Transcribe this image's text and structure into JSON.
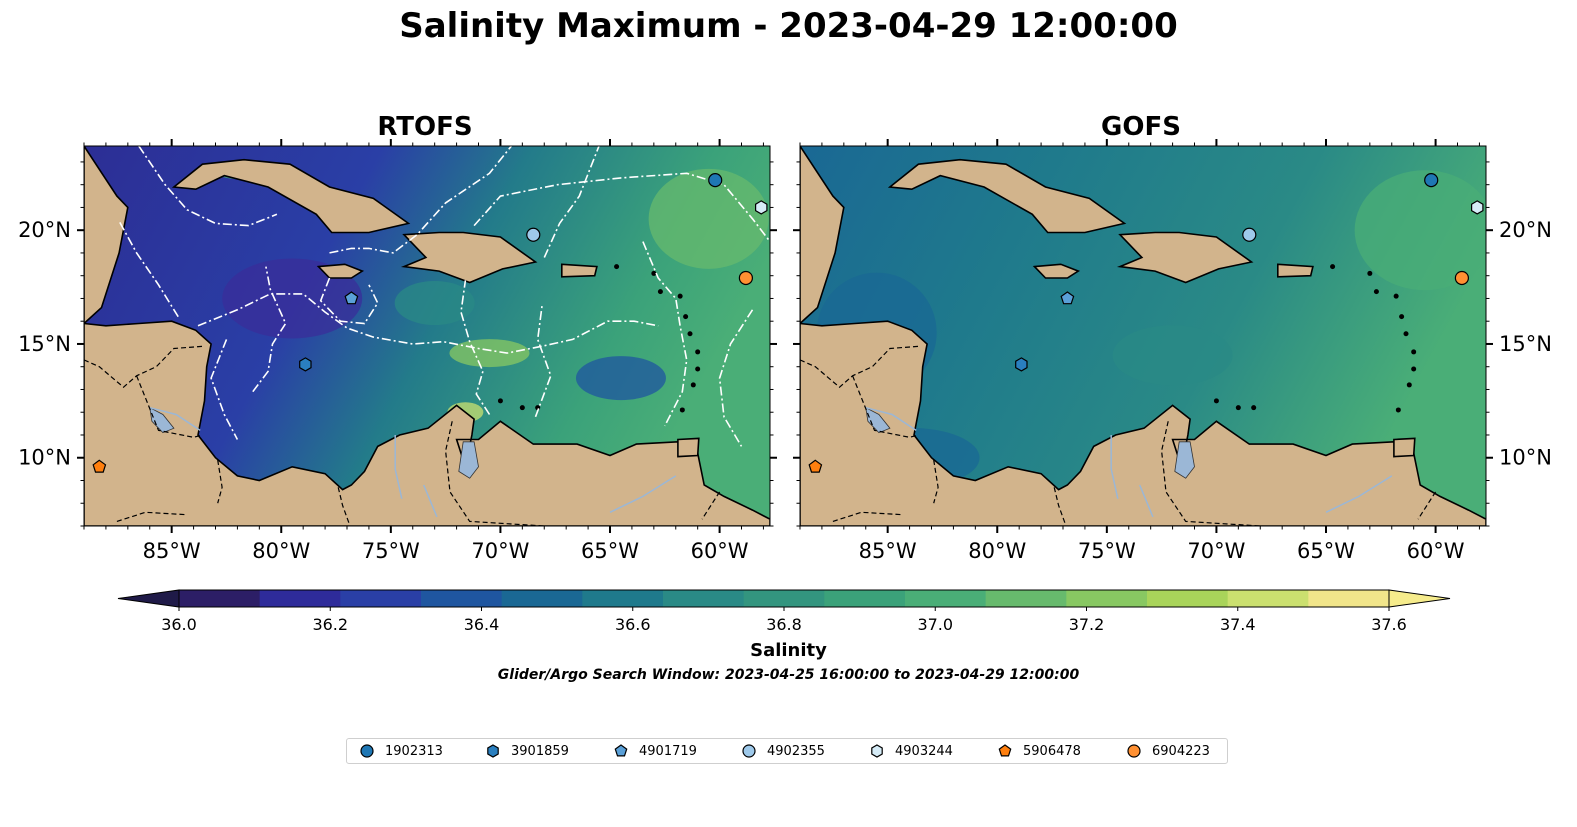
{
  "title": "Salinity Maximum - 2023-04-29 12:00:00",
  "panels": [
    {
      "title": "RTOFS",
      "model": "rtofs"
    },
    {
      "title": "GOFS",
      "model": "gofs"
    }
  ],
  "map": {
    "lon_range": [
      -89,
      -57.7
    ],
    "lat_range": [
      7,
      23.7
    ],
    "lon_ticks": [
      {
        "value": -85,
        "label": "85°W"
      },
      {
        "value": -80,
        "label": "80°W"
      },
      {
        "value": -75,
        "label": "75°W"
      },
      {
        "value": -70,
        "label": "70°W"
      },
      {
        "value": -65,
        "label": "65°W"
      },
      {
        "value": -60,
        "label": "60°W"
      }
    ],
    "lat_ticks": [
      {
        "value": 10,
        "label": "10°N"
      },
      {
        "value": 15,
        "label": "15°N"
      },
      {
        "value": 20,
        "label": "20°N"
      }
    ],
    "land_color": "#d2b48c",
    "lake_color": "#9bb7d6",
    "river_color": "#9bb7d6",
    "eez_line_color": "#ffffff"
  },
  "colorbar": {
    "label": "Salinity",
    "min": 36.0,
    "max": 37.6,
    "tick_values": [
      36.0,
      36.2,
      36.4,
      36.6,
      36.8,
      37.0,
      37.2,
      37.4,
      37.6
    ],
    "tick_labels": [
      "36.0",
      "36.2",
      "36.4",
      "36.6",
      "36.8",
      "37.0",
      "37.2",
      "37.4",
      "37.6"
    ],
    "colors": [
      "#2c1e66",
      "#2e2b9a",
      "#2a3fa6",
      "#1f56a0",
      "#1a6894",
      "#1f7a8c",
      "#2a8a86",
      "#33957f",
      "#3ba27a",
      "#4aae77",
      "#67ba6d",
      "#88c862",
      "#a9d45a",
      "#cbe06f",
      "#f1e58a"
    ]
  },
  "search_window": "Glider/Argo Search Window: 2023-04-25 16:00:00 to 2023-04-29 12:00:00",
  "floats": [
    {
      "id": "1902313",
      "marker": "circle",
      "color": "#1f77b4",
      "lon": -60.2,
      "lat": 22.2
    },
    {
      "id": "3901859",
      "marker": "hexagon",
      "color": "#2a7fbf",
      "lon": -78.9,
      "lat": 14.1
    },
    {
      "id": "4901719",
      "marker": "pentagon",
      "color": "#5aa0d8",
      "lon": -76.8,
      "lat": 17.0
    },
    {
      "id": "4902355",
      "marker": "circle",
      "color": "#9ec9ea",
      "lon": -68.5,
      "lat": 19.8
    },
    {
      "id": "4903244",
      "marker": "hexagon",
      "color": "#d6ecf7",
      "lon": -58.1,
      "lat": 21.0
    },
    {
      "id": "5906478",
      "marker": "pentagon",
      "color": "#ff7f0e",
      "lon": -88.3,
      "lat": 9.6
    },
    {
      "id": "6904223",
      "marker": "circle",
      "color": "#ff9032",
      "lon": -58.8,
      "lat": 17.9
    }
  ]
}
